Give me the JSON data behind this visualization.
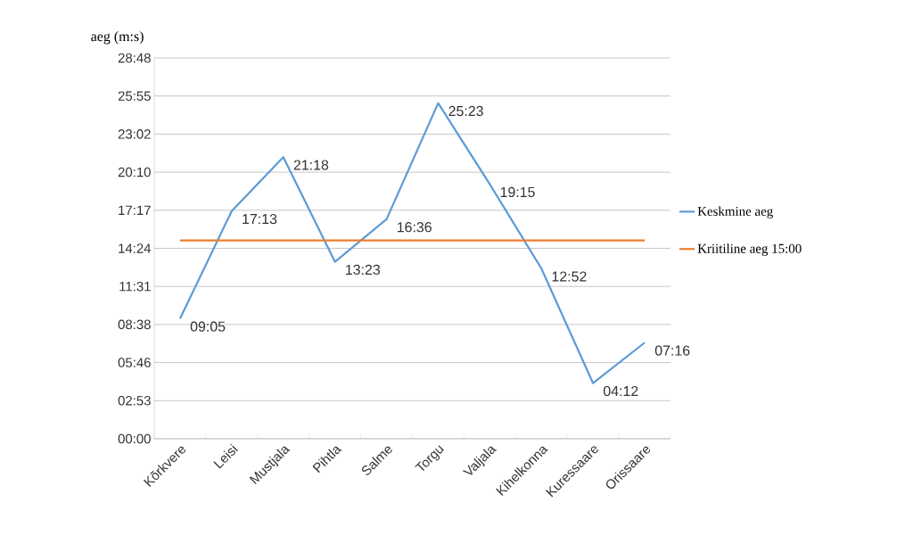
{
  "chart_data": {
    "type": "line",
    "ylabel": "aeg (m:s)",
    "categories": [
      "Kõrkvere",
      "Leisi",
      "Mustjala",
      "Pihtla",
      "Salme",
      "Torgu",
      "Valjala",
      "Kihelkonna",
      "Kuressaare",
      "Orissaare"
    ],
    "series": [
      {
        "name": "Keskmine aeg",
        "color": "#5b9bd5",
        "values": [
          545,
          1033,
          1278,
          803,
          996,
          1523,
          1155,
          772,
          252,
          436
        ],
        "value_labels": [
          "09:05",
          "17:13",
          "21:18",
          "13:23",
          "16:36",
          "25:23",
          "19:15",
          "12:52",
          "04:12",
          "07:16"
        ]
      },
      {
        "name": "Kriitiline aeg 15:00",
        "color": "#ed7d31",
        "values": [
          900,
          900,
          900,
          900,
          900,
          900,
          900,
          900,
          900,
          900
        ]
      }
    ],
    "ylim": [
      0,
      1728
    ],
    "yticks": [
      {
        "value": 0,
        "label": "00:00"
      },
      {
        "value": 172.8,
        "label": "02:53"
      },
      {
        "value": 345.6,
        "label": "05:46"
      },
      {
        "value": 518.4,
        "label": "08:38"
      },
      {
        "value": 691.2,
        "label": "11:31"
      },
      {
        "value": 864,
        "label": "14:24"
      },
      {
        "value": 1036.8,
        "label": "17:17"
      },
      {
        "value": 1209.6,
        "label": "20:10"
      },
      {
        "value": 1382.4,
        "label": "23:02"
      },
      {
        "value": 1555.2,
        "label": "25:55"
      },
      {
        "value": 1728,
        "label": "28:48"
      }
    ],
    "grid": "y",
    "legend": "right",
    "marker": "none",
    "line_style": "solid"
  }
}
